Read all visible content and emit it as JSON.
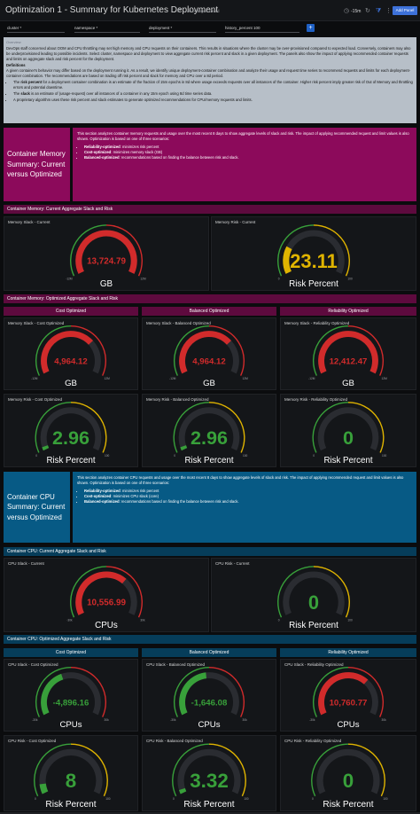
{
  "header": {
    "title": "Optimization 1 - Summary for Kubernetes Deployment",
    "saved_text": "All changes saved",
    "time_range": "-15m",
    "add_panel_label": "Add Panel",
    "share_icon": "share-icon",
    "clock_icon": "clock-icon",
    "refresh_icon": "refresh-icon",
    "filter_icon": "filter-icon",
    "more_icon": "more-icon"
  },
  "variables": [
    {
      "label": "cluster",
      "value": "*"
    },
    {
      "label": "namespace",
      "value": "*"
    },
    {
      "label": "deployment",
      "value": "*"
    },
    {
      "label": "history_percent",
      "value": "100"
    }
  ],
  "overview": {
    "title": "Overview",
    "intro": "DevOps staff concerned about OOM and CPU throttling may set high memory and CPU requests on their containers. This results in situations where the cluster may be over-provisioned compared to expected load. Conversely, containers may also be underprovisioned leading to possible incidents. Select cluster, namespace and deployment to view aggregate current risk percent and slack in a given deployment. The panels also show the impact of applying recommended container requests and limits on aggregate slack and risk percent for the deployment.",
    "definitions_title": "Definitions",
    "definitions_text": "A given container's behavior may differ based on the deployment running it. As a result, we identify unique deployment-container combination and analyze their usage and request time series to recommend requests and limits for each deployment-container combination. The recommendations are based on trading off risk percent and slack for memory and CPU over a 8d period.",
    "bullets": [
      {
        "term": "risk percent",
        "text": "for a deployment container combination is an estimate of the fraction of 15m epochs in 8d where usage exceeds requests over all instances of the container. Higher risk percent imply greater risk of Out of Memory and throttling errors and potential downtime."
      },
      {
        "term": "slack",
        "text": "is an estimate of (usage-request) over all instances of a container in any 15m epoch using 8d time series data."
      },
      {
        "term": "",
        "text": "A proprietary algorithm uses these risk percent and slack estimates to generate optimized recommendations for CPU/memory requests and limits."
      }
    ],
    "bullet_prefix": "The"
  },
  "memory_summary": {
    "title": "Container Memory Summary: Current versus Optimized",
    "intro": "This section analyzes container memory requests and usage over the most recent 8 days to show aggregate levels of slack and risk. The impact of applying recommended request and limit values is also shown. Optimization is based on one of three scenarios:",
    "items": [
      {
        "term": "Reliability-optimized",
        "text": ": minimizes risk percent"
      },
      {
        "term": "Cost-optimized",
        "text": ": minimizes memory slack (GB)"
      },
      {
        "term": "Balanced-optimized",
        "text": ": recommendations based on finding the balance between risk and slack."
      }
    ]
  },
  "cpu_summary": {
    "title": "Container CPU Summary: Current versus Optimized",
    "intro": "This section analyzes container CPU requests and usage over the most recent 8 days to show aggregate levels of slack and risk. The impact of applying recommended request and limit values is also shown. Optimization is based on one of three scenarios:",
    "items": [
      {
        "term": "Reliability-optimized",
        "text": ": minimizes risk percent"
      },
      {
        "term": "Cost-optimized",
        "text": ": minimizes CPU slack (core)"
      },
      {
        "term": "Balanced-optimized",
        "text": ": recommendations based on finding the balance between risk and slack."
      }
    ]
  },
  "row_headers": {
    "mem_current": "Container Memory: Current Aggregate Slack and Risk",
    "mem_optimized": "Container Memory: Optimized Aggregate Slack and Risk",
    "cpu_current": "Container CPU: Current Aggregate Slack and Risk",
    "cpu_optimized": "Container CPU: Optimized Aggregate Slack and Risk"
  },
  "sub_headers": [
    "Cost Optimized",
    "Balanced Optimized",
    "Reliability Optimized"
  ],
  "colors": {
    "red": "#d12b2b",
    "green": "#38a03a",
    "yellow": "#e0b400",
    "track": "#2a2c31",
    "mem_accent": "#8c0a5b",
    "cpu_accent": "#075a85"
  },
  "gauges": [
    {
      "key": "mem_slack_current",
      "title": "Memory Slack - Current",
      "value": 13724.79,
      "display": "13,724.79",
      "unit": "GB",
      "min": -12000,
      "max": 12000,
      "min_label": "-12M",
      "max_label": "12M",
      "kind": "slack",
      "big": false
    },
    {
      "key": "mem_risk_current",
      "title": "Memory Risk - Current",
      "value": 23.11,
      "display": "23.11",
      "unit": "Risk Percent",
      "min": 0,
      "max": 100,
      "min_label": "0",
      "max_label": "100",
      "kind": "risk",
      "big": true
    },
    {
      "key": "mem_slack_cost",
      "title": "Memory Slack - Cost Optimized",
      "value": 4964.12,
      "display": "4,964.12",
      "unit": "GB",
      "min": -12000,
      "max": 12000,
      "min_label": "-12M",
      "max_label": "12M",
      "kind": "slack",
      "big": false
    },
    {
      "key": "mem_slack_balanced",
      "title": "Memory Slack - Balanced Optimized",
      "value": 4964.12,
      "display": "4,964.12",
      "unit": "GB",
      "min": -12000,
      "max": 12000,
      "min_label": "-12M",
      "max_label": "12M",
      "kind": "slack",
      "big": false
    },
    {
      "key": "mem_slack_reliability",
      "title": "Memory Slack - Reliability Optimized",
      "value": 12412.47,
      "display": "12,412.47",
      "unit": "GB",
      "min": -12000,
      "max": 12000,
      "min_label": "-12M",
      "max_label": "12M",
      "kind": "slack",
      "big": false
    },
    {
      "key": "mem_risk_cost",
      "title": "Memory Risk - Cost Optimized",
      "value": 2.96,
      "display": "2.96",
      "unit": "Risk Percent",
      "min": 0,
      "max": 100,
      "min_label": "0",
      "max_label": "100",
      "kind": "risk",
      "big": true
    },
    {
      "key": "mem_risk_balanced",
      "title": "Memory Risk - Balanced Optimized",
      "value": 2.96,
      "display": "2.96",
      "unit": "Risk Percent",
      "min": 0,
      "max": 100,
      "min_label": "0",
      "max_label": "100",
      "kind": "risk",
      "big": true
    },
    {
      "key": "mem_risk_reliability",
      "title": "Memory Risk - Reliability Optimized",
      "value": 0,
      "display": "0",
      "unit": "Risk Percent",
      "min": 0,
      "max": 100,
      "min_label": "0",
      "max_label": "100",
      "kind": "risk",
      "big": true
    },
    {
      "key": "cpu_slack_current",
      "title": "CPU Slack - Current",
      "value": 10556.99,
      "display": "10,556.99",
      "unit": "CPUs",
      "min": -30000,
      "max": 30000,
      "min_label": "-30k",
      "max_label": "30k",
      "kind": "slack",
      "big": false
    },
    {
      "key": "cpu_risk_current",
      "title": "CPU Risk - Current",
      "value": 0,
      "display": "0",
      "unit": "Risk Percent",
      "min": 0,
      "max": 100,
      "min_label": "0",
      "max_label": "100",
      "kind": "risk",
      "big": true
    },
    {
      "key": "cpu_slack_cost",
      "title": "CPU Slack - Cost Optimized",
      "value": -4896.16,
      "display": "-4,896.16",
      "unit": "CPUs",
      "min": -30000,
      "max": 30000,
      "min_label": "-30k",
      "max_label": "30k",
      "kind": "slack",
      "big": false
    },
    {
      "key": "cpu_slack_balanced",
      "title": "CPU Slack - Balanced Optimized",
      "value": -1646.08,
      "display": "-1,646.08",
      "unit": "CPUs",
      "min": -30000,
      "max": 30000,
      "min_label": "-30k",
      "max_label": "30k",
      "kind": "slack",
      "big": false
    },
    {
      "key": "cpu_slack_reliability",
      "title": "CPU Slack - Reliability Optimized",
      "value": 10760.77,
      "display": "10,760.77",
      "unit": "CPUs",
      "min": -30000,
      "max": 30000,
      "min_label": "-30k",
      "max_label": "30k",
      "kind": "slack",
      "big": false
    },
    {
      "key": "cpu_risk_cost",
      "title": "CPU Risk - Cost Optimized",
      "value": 8,
      "display": "8",
      "unit": "Risk Percent",
      "min": 0,
      "max": 100,
      "min_label": "0",
      "max_label": "100",
      "kind": "risk",
      "big": true
    },
    {
      "key": "cpu_risk_balanced",
      "title": "CPU Risk - Balanced Optimized",
      "value": 3.32,
      "display": "3.32",
      "unit": "Risk Percent",
      "min": 0,
      "max": 100,
      "min_label": "0",
      "max_label": "100",
      "kind": "risk",
      "big": true
    },
    {
      "key": "cpu_risk_reliability",
      "title": "CPU Risk - Reliability Optimized",
      "value": 0,
      "display": "0",
      "unit": "Risk Percent",
      "min": 0,
      "max": 100,
      "min_label": "0",
      "max_label": "100",
      "kind": "risk",
      "big": true
    }
  ]
}
